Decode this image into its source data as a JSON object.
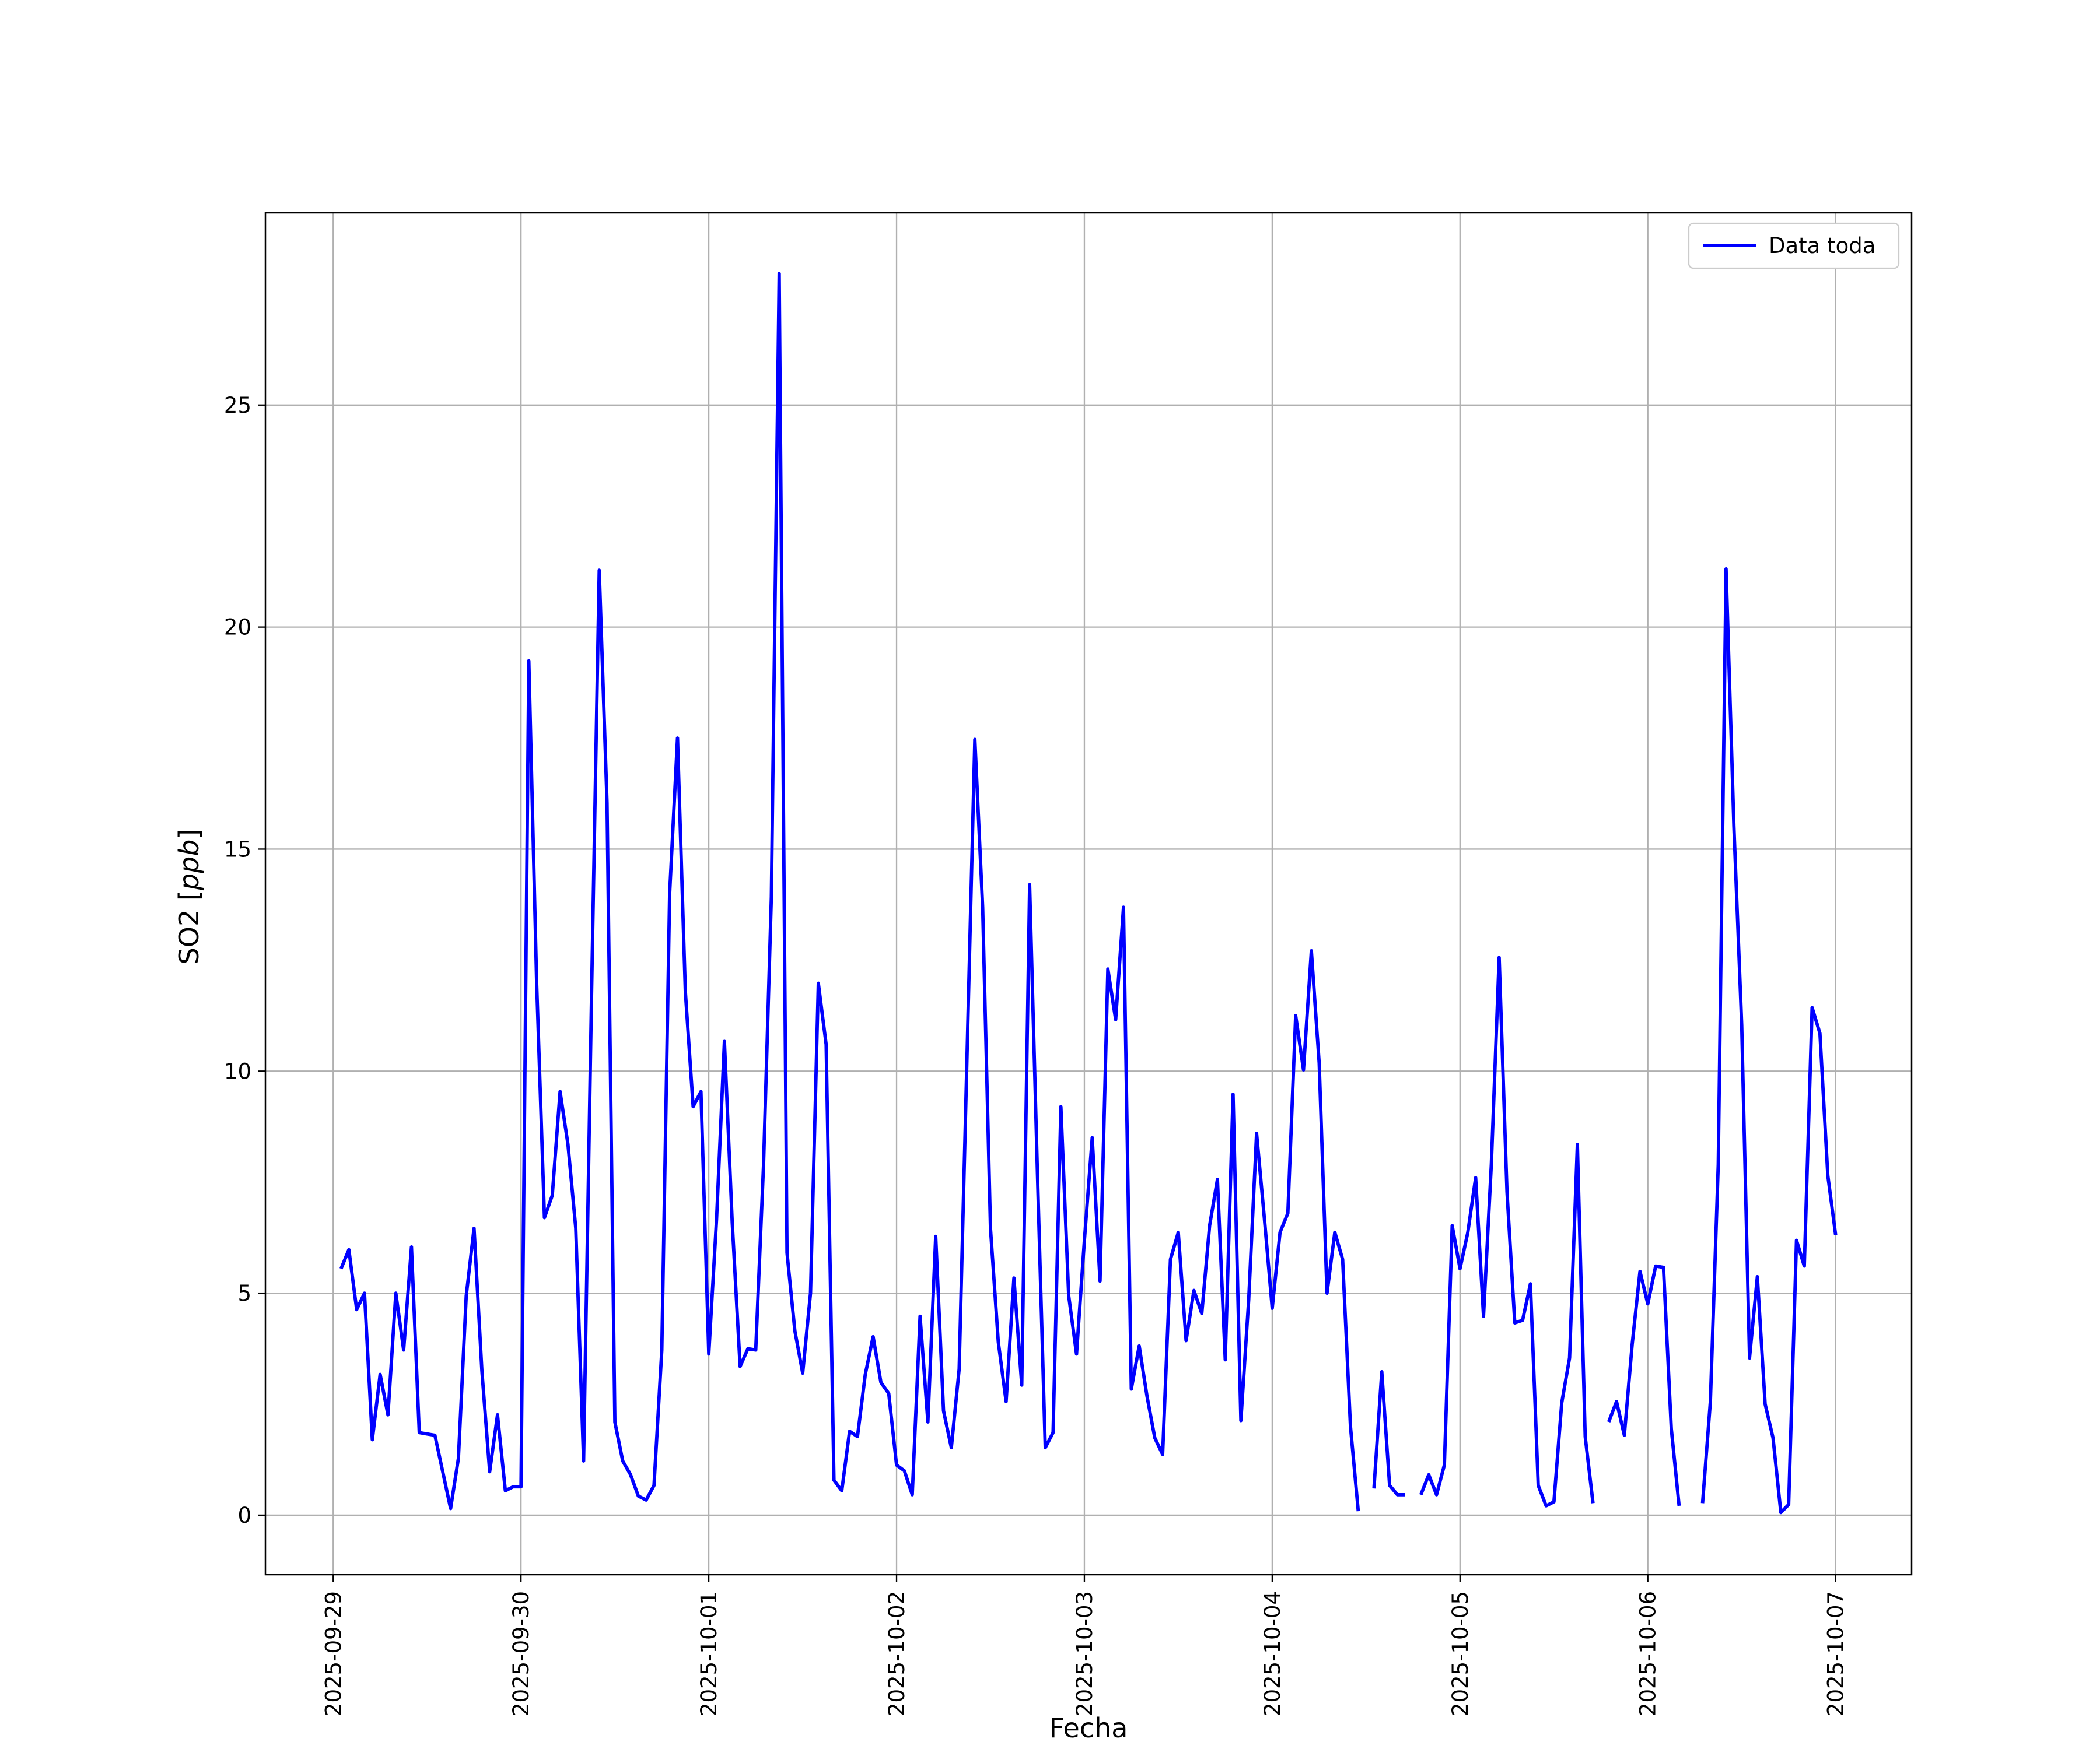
{
  "chart_data": {
    "type": "line",
    "title": "",
    "xlabel": "Fecha",
    "ylabel": "SO2 [ppb]",
    "ylabel_italic_part": "ppb",
    "x_axis_type": "date",
    "xlim": [
      "2025-09-28T15:20",
      "2025-10-07T09:43"
    ],
    "ylim": [
      -1.34,
      29.33
    ],
    "grid": true,
    "legend_placement": "upper right",
    "x_ticks": [
      "2025-09-29",
      "2025-09-30",
      "2025-10-01",
      "2025-10-02",
      "2025-10-03",
      "2025-10-04",
      "2025-10-05",
      "2025-10-06",
      "2025-10-07"
    ],
    "x_tick_rotation": 90,
    "y_ticks": [
      0,
      5,
      10,
      15,
      20,
      25
    ],
    "colors": {
      "series": "#0000ff",
      "grid": "#b0b0b0"
    },
    "series": [
      {
        "name": "Data toda",
        "x": [
          "2025-09-29T01:00",
          "2025-09-29T02:00",
          "2025-09-29T03:00",
          "2025-09-29T04:00",
          "2025-09-29T05:00",
          "2025-09-29T06:00",
          "2025-09-29T07:00",
          "2025-09-29T08:00",
          "2025-09-29T09:00",
          "2025-09-29T10:00",
          "2025-09-29T11:00",
          "2025-09-29T12:00",
          "2025-09-29T13:00",
          "2025-09-29T14:00",
          "2025-09-29T15:00",
          "2025-09-29T16:00",
          "2025-09-29T17:00",
          "2025-09-29T18:00",
          "2025-09-29T19:00",
          "2025-09-29T20:00",
          "2025-09-29T21:00",
          "2025-09-29T22:00",
          "2025-09-29T23:00",
          "2025-09-30T00:00",
          "2025-09-30T01:00",
          "2025-09-30T02:00",
          "2025-09-30T03:00",
          "2025-09-30T04:00",
          "2025-09-30T05:00",
          "2025-09-30T06:00",
          "2025-09-30T07:00",
          "2025-09-30T08:00",
          "2025-09-30T09:00",
          "2025-09-30T10:00",
          "2025-09-30T11:00",
          "2025-09-30T12:00",
          "2025-09-30T13:00",
          "2025-09-30T14:00",
          "2025-09-30T15:00",
          "2025-09-30T16:00",
          "2025-09-30T17:00",
          "2025-09-30T18:00",
          "2025-09-30T19:00",
          "2025-09-30T20:00",
          "2025-09-30T21:00",
          "2025-09-30T22:00",
          "2025-09-30T23:00",
          "2025-10-01T00:00",
          "2025-10-01T01:00",
          "2025-10-01T02:00",
          "2025-10-01T03:00",
          "2025-10-01T04:00",
          "2025-10-01T05:00",
          "2025-10-01T06:00",
          "2025-10-01T07:00",
          "2025-10-01T08:00",
          "2025-10-01T09:00",
          "2025-10-01T10:00",
          "2025-10-01T11:00",
          "2025-10-01T12:00",
          "2025-10-01T13:00",
          "2025-10-01T14:00",
          "2025-10-01T15:00",
          "2025-10-01T16:00",
          "2025-10-01T17:00",
          "2025-10-01T18:00",
          "2025-10-01T19:00",
          "2025-10-01T20:00",
          "2025-10-01T21:00",
          "2025-10-01T22:00",
          "2025-10-01T23:00",
          "2025-10-02T00:00",
          "2025-10-02T01:00",
          "2025-10-02T02:00",
          "2025-10-02T03:00",
          "2025-10-02T04:00",
          "2025-10-02T05:00",
          "2025-10-02T06:00",
          "2025-10-02T07:00",
          "2025-10-02T08:00",
          "2025-10-02T09:00",
          "2025-10-02T10:00",
          "2025-10-02T11:00",
          "2025-10-02T12:00",
          "2025-10-02T13:00",
          "2025-10-02T14:00",
          "2025-10-02T15:00",
          "2025-10-02T16:00",
          "2025-10-02T17:00",
          "2025-10-02T18:00",
          "2025-10-02T19:00",
          "2025-10-02T20:00",
          "2025-10-02T21:00",
          "2025-10-02T22:00",
          "2025-10-02T23:00",
          "2025-10-03T00:00",
          "2025-10-03T01:00",
          "2025-10-03T02:00",
          "2025-10-03T03:00",
          "2025-10-03T04:00",
          "2025-10-03T05:00",
          "2025-10-03T06:00",
          "2025-10-03T07:00",
          "2025-10-03T08:00",
          "2025-10-03T09:00",
          "2025-10-03T10:00",
          "2025-10-03T11:00",
          "2025-10-03T12:00",
          "2025-10-03T13:00",
          "2025-10-03T14:00",
          "2025-10-03T15:00",
          "2025-10-03T16:00",
          "2025-10-03T17:00",
          "2025-10-03T18:00",
          "2025-10-03T19:00",
          "2025-10-03T20:00",
          "2025-10-03T21:00",
          "2025-10-03T22:00",
          "2025-10-03T23:00",
          "2025-10-04T00:00",
          "2025-10-04T01:00",
          "2025-10-04T02:00",
          "2025-10-04T03:00",
          "2025-10-04T04:00",
          "2025-10-04T05:00",
          "2025-10-04T06:00",
          "2025-10-04T07:00",
          "2025-10-04T08:00",
          "2025-10-04T09:00",
          "2025-10-04T10:00",
          "2025-10-04T11:00",
          "2025-10-04T12:00",
          "2025-10-04T13:00",
          "2025-10-04T14:00",
          "2025-10-04T15:00",
          "2025-10-04T16:00",
          "2025-10-04T17:00",
          "2025-10-04T18:00",
          "2025-10-04T19:00",
          "2025-10-04T20:00",
          "2025-10-04T21:00",
          "2025-10-04T22:00",
          "2025-10-04T23:00",
          "2025-10-05T00:00",
          "2025-10-05T01:00",
          "2025-10-05T02:00",
          "2025-10-05T03:00",
          "2025-10-05T04:00",
          "2025-10-05T05:00",
          "2025-10-05T06:00",
          "2025-10-05T07:00",
          "2025-10-05T08:00",
          "2025-10-05T09:00",
          "2025-10-05T10:00",
          "2025-10-05T11:00",
          "2025-10-05T12:00",
          "2025-10-05T13:00",
          "2025-10-05T14:00",
          "2025-10-05T15:00",
          "2025-10-05T16:00",
          "2025-10-05T17:00",
          "2025-10-05T18:00",
          "2025-10-05T19:00",
          "2025-10-05T20:00",
          "2025-10-05T21:00",
          "2025-10-05T22:00",
          "2025-10-05T23:00",
          "2025-10-06T00:00",
          "2025-10-06T01:00",
          "2025-10-06T02:00",
          "2025-10-06T03:00",
          "2025-10-06T04:00",
          "2025-10-06T05:00",
          "2025-10-06T06:00",
          "2025-10-06T07:00",
          "2025-10-06T08:00",
          "2025-10-06T09:00",
          "2025-10-06T10:00",
          "2025-10-06T11:00",
          "2025-10-06T12:00",
          "2025-10-06T13:00",
          "2025-10-06T14:00",
          "2025-10-06T15:00",
          "2025-10-06T16:00",
          "2025-10-06T17:00",
          "2025-10-06T18:00",
          "2025-10-06T19:00",
          "2025-10-06T20:00",
          "2025-10-06T21:00",
          "2025-10-06T22:00",
          "2025-10-06T23:00",
          "2025-10-07T00:00"
        ],
        "values": [
          5.55,
          5.98,
          4.63,
          5.0,
          1.7,
          3.17,
          2.26,
          5.0,
          3.72,
          6.04,
          1.86,
          1.83,
          1.8,
          0.98,
          0.15,
          1.28,
          4.94,
          6.46,
          3.26,
          0.98,
          2.26,
          0.55,
          0.64,
          0.64,
          19.24,
          12.0,
          6.7,
          7.2,
          9.54,
          8.35,
          6.46,
          1.22,
          11.55,
          21.28,
          16.04,
          2.1,
          1.22,
          0.91,
          0.43,
          0.34,
          0.67,
          3.72,
          14.0,
          17.5,
          11.8,
          9.2,
          9.54,
          3.63,
          6.68,
          10.67,
          6.59,
          3.35,
          3.75,
          3.72,
          7.9,
          13.93,
          27.96,
          5.91,
          4.15,
          3.2,
          5.0,
          11.98,
          10.6,
          0.79,
          0.55,
          1.89,
          1.77,
          3.17,
          4.02,
          2.99,
          2.74,
          1.13,
          1.0,
          0.46,
          4.48,
          2.1,
          6.28,
          2.35,
          1.52,
          3.29,
          10.34,
          17.47,
          13.69,
          6.46,
          3.9,
          2.56,
          5.34,
          2.93,
          14.2,
          7.7,
          1.52,
          1.86,
          9.2,
          4.94,
          3.63,
          6.19,
          8.5,
          5.27,
          12.3,
          11.16,
          13.69,
          2.84,
          3.81,
          2.68,
          1.74,
          1.37,
          5.76,
          6.37,
          3.93,
          5.06,
          4.54,
          6.52,
          7.56,
          3.5,
          9.48,
          2.13,
          4.85,
          8.6,
          6.68,
          4.66,
          6.37,
          6.8,
          11.25,
          10.03,
          12.71,
          10.18,
          5.0,
          6.37,
          5.76,
          2.0,
          0.09,
          null,
          0.6,
          3.23,
          0.67,
          0.46,
          0.46,
          null,
          0.46,
          0.91,
          0.46,
          1.13,
          6.52,
          5.55,
          6.37,
          7.6,
          4.48,
          7.9,
          12.56,
          7.29,
          4.33,
          4.39,
          5.21,
          0.67,
          0.21,
          0.3,
          2.53,
          3.54,
          8.35,
          1.77,
          0.27,
          null,
          2.1,
          2.56,
          1.8,
          3.84,
          5.49,
          4.76,
          5.61,
          5.58,
          1.95,
          0.21,
          null,
          null,
          0.27,
          2.56,
          7.9,
          21.31,
          15.52,
          11.04,
          3.54,
          5.37,
          2.5,
          1.74,
          0.06,
          0.24,
          6.19,
          5.61,
          11.43,
          10.85,
          7.65,
          6.31
        ]
      }
    ]
  }
}
